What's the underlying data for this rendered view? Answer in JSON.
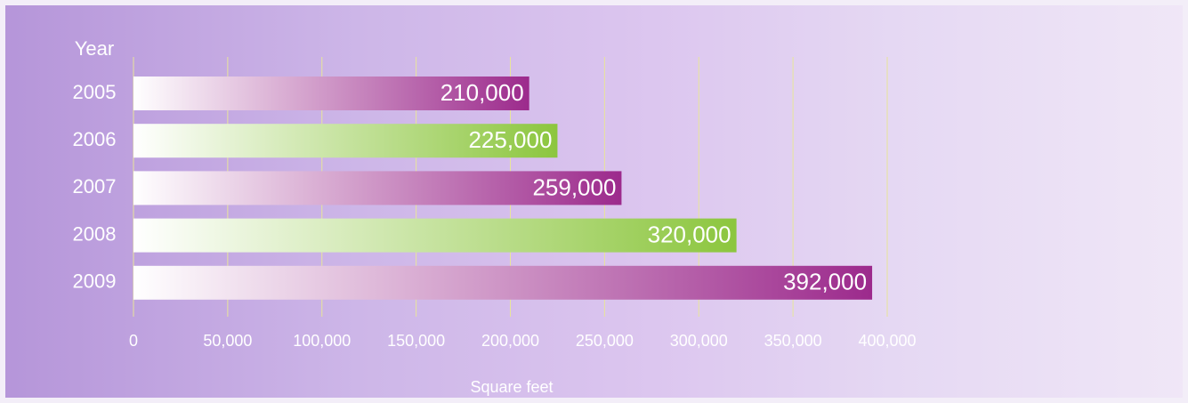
{
  "chart_data": {
    "type": "bar",
    "orientation": "horizontal",
    "y_label": "Year",
    "x_label": "Square feet",
    "categories": [
      "2005",
      "2006",
      "2007",
      "2008",
      "2009"
    ],
    "values": [
      210000,
      225000,
      259000,
      320000,
      392000
    ],
    "value_labels": [
      "210,000",
      "225,000",
      "259,000",
      "320,000",
      "392,000"
    ],
    "colors": [
      "#9c2a8c",
      "#8cc63e",
      "#9c2a8c",
      "#8cc63e",
      "#9c2a8c"
    ],
    "xlim": [
      0,
      400000
    ],
    "xticks": [
      0,
      {
        "value": 50000,
        "label": "50,000"
      },
      {
        "value": 100000,
        "label": "100,000"
      },
      {
        "value": 150000,
        "label": "150,000"
      },
      {
        "value": 200000,
        "label": "200,000"
      },
      {
        "value": 250000,
        "label": "250,000"
      },
      {
        "value": 300000,
        "label": "300,000"
      },
      {
        "value": 350000,
        "label": "350,000"
      },
      {
        "value": 400000,
        "label": "400,000"
      }
    ],
    "grid": true
  }
}
